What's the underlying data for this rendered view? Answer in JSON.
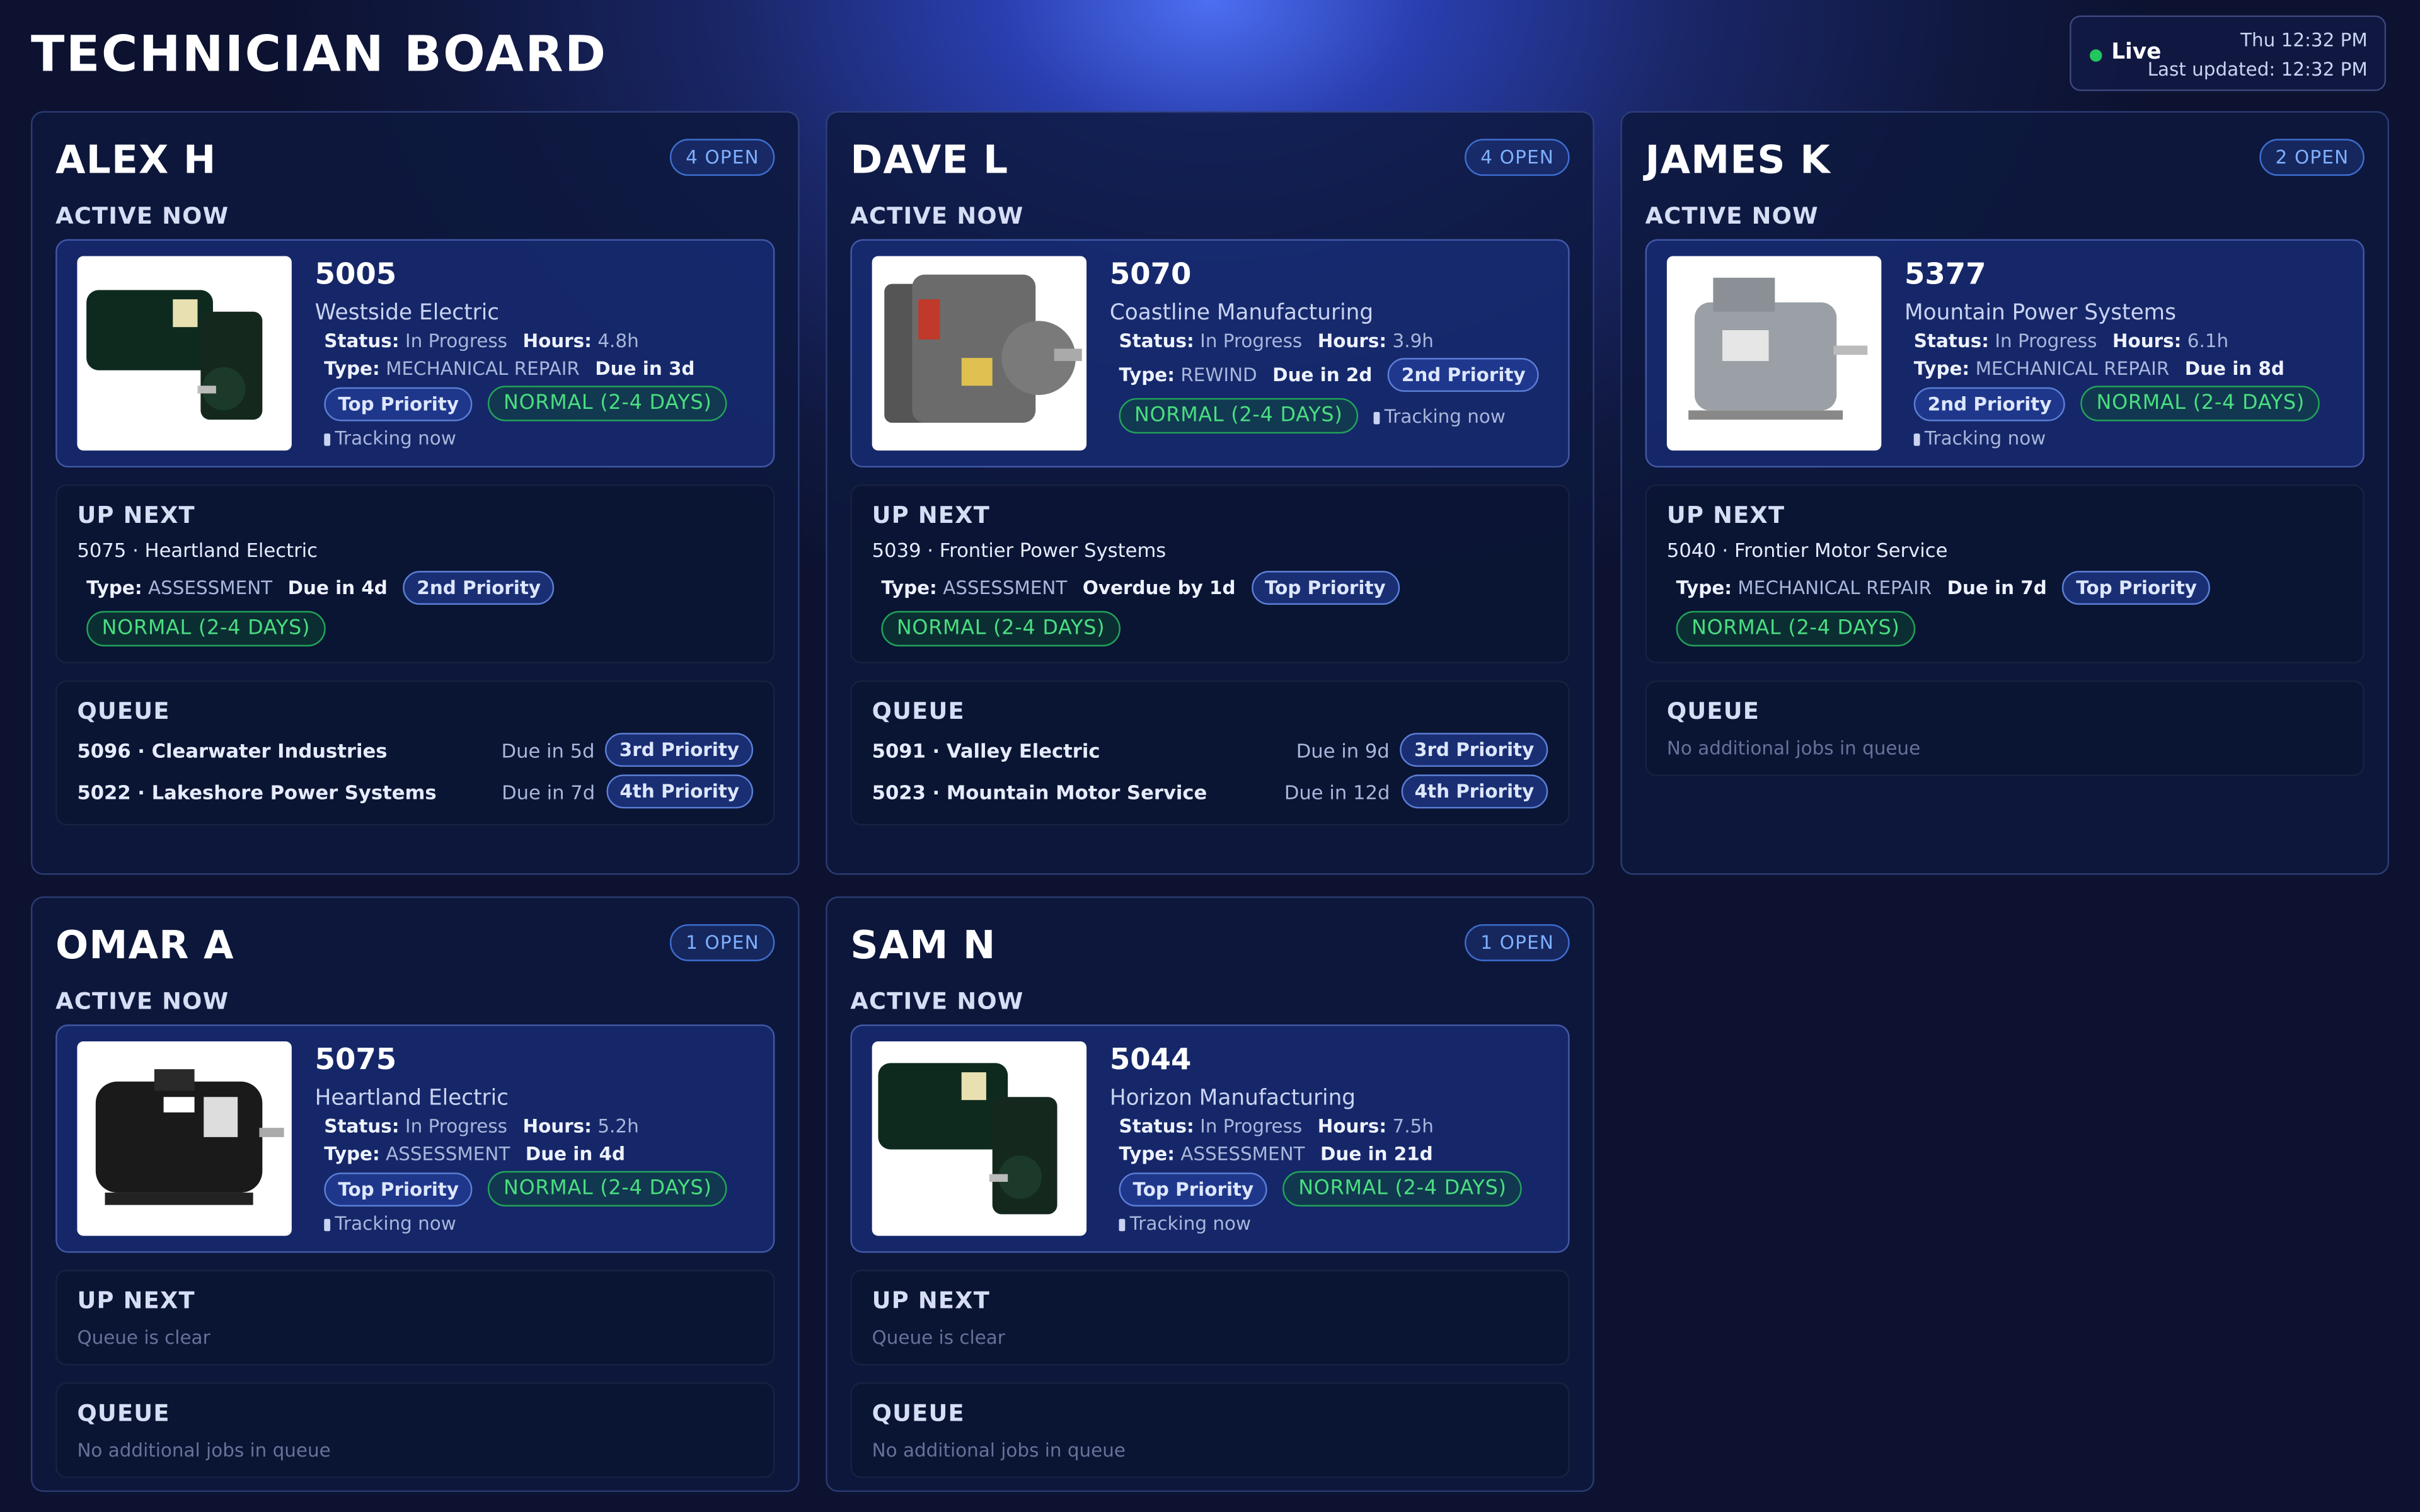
{
  "header": {
    "title": "TECHNICIAN BOARD",
    "live": "Live",
    "time": "Thu 12:32 PM",
    "last_updated": "Last updated: 12:32 PM"
  },
  "labels": {
    "active_now": "ACTIVE NOW",
    "up_next": "UP NEXT",
    "queue": "QUEUE",
    "status": "Status:",
    "hours": "Hours:",
    "type": "Type:",
    "tracking": "Tracking now",
    "queue_clear": "Queue is clear",
    "no_jobs": "No additional jobs in queue"
  },
  "technicians": [
    {
      "name": "ALEX H",
      "open": "4 OPEN",
      "active": {
        "id": "5005",
        "customer": "Westside Electric",
        "status": "In Progress",
        "hours": "4.8h",
        "type": "MECHANICAL REPAIR",
        "due": "Due in 3d",
        "priority": "Top Priority",
        "rush": "NORMAL (2-4 DAYS)"
      },
      "up_next": {
        "job": "5075 · Heartland Electric",
        "type": "ASSESSMENT",
        "due": "Due in 4d",
        "priority": "2nd Priority",
        "rush": "NORMAL (2-4 DAYS)"
      },
      "queue": [
        {
          "job": "5096 · Clearwater Industries",
          "due": "Due in 5d",
          "priority": "3rd Priority"
        },
        {
          "job": "5022 · Lakeshore Power Systems",
          "due": "Due in 7d",
          "priority": "4th Priority"
        }
      ]
    },
    {
      "name": "DAVE L",
      "open": "4 OPEN",
      "active": {
        "id": "5070",
        "customer": "Coastline Manufacturing",
        "status": "In Progress",
        "hours": "3.9h",
        "type": "REWIND",
        "due": "Due in 2d",
        "priority": "2nd Priority",
        "rush": "NORMAL (2-4 DAYS)"
      },
      "up_next": {
        "job": "5039 · Frontier Power Systems",
        "type": "ASSESSMENT",
        "due": "Overdue by 1d",
        "priority": "Top Priority",
        "rush": "NORMAL (2-4 DAYS)"
      },
      "queue": [
        {
          "job": "5091 · Valley Electric",
          "due": "Due in 9d",
          "priority": "3rd Priority"
        },
        {
          "job": "5023 · Mountain Motor Service",
          "due": "Due in 12d",
          "priority": "4th Priority"
        }
      ]
    },
    {
      "name": "JAMES K",
      "open": "2 OPEN",
      "active": {
        "id": "5377",
        "customer": "Mountain Power Systems",
        "status": "In Progress",
        "hours": "6.1h",
        "type": "MECHANICAL REPAIR",
        "due": "Due in 8d",
        "priority": "2nd Priority",
        "rush": "NORMAL (2-4 DAYS)"
      },
      "up_next": {
        "job": "5040 · Frontier Motor Service",
        "type": "MECHANICAL REPAIR",
        "due": "Due in 7d",
        "priority": "Top Priority",
        "rush": "NORMAL (2-4 DAYS)"
      },
      "queue": []
    },
    {
      "name": "OMAR A",
      "open": "1 OPEN",
      "active": {
        "id": "5075",
        "customer": "Heartland Electric",
        "status": "In Progress",
        "hours": "5.2h",
        "type": "ASSESSMENT",
        "due": "Due in 4d",
        "priority": "Top Priority",
        "rush": "NORMAL (2-4 DAYS)"
      },
      "up_next": null,
      "queue": []
    },
    {
      "name": "SAM N",
      "open": "1 OPEN",
      "active": {
        "id": "5044",
        "customer": "Horizon Manufacturing",
        "status": "In Progress",
        "hours": "7.5h",
        "type": "ASSESSMENT",
        "due": "Due in 21d",
        "priority": "Top Priority",
        "rush": "NORMAL (2-4 DAYS)"
      },
      "up_next": null,
      "queue": []
    }
  ]
}
